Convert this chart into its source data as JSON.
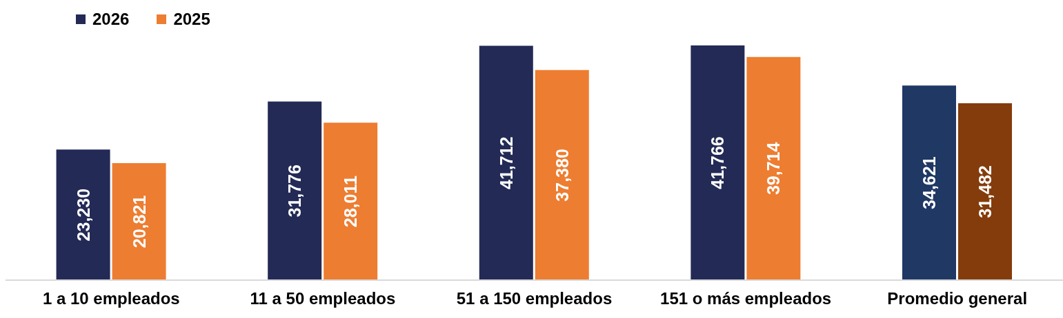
{
  "chart_data": {
    "type": "bar",
    "categories": [
      "1 a 10 empleados",
      "11 a 50 empleados",
      "51 a 150 empleados",
      "151 o más empleados",
      "Promedio general"
    ],
    "series": [
      {
        "name": "2026",
        "color": "#232a56",
        "colors": [
          "#232a56",
          "#232a56",
          "#232a56",
          "#232a56",
          "#1f3864"
        ],
        "values": [
          23230,
          31776,
          41712,
          41766,
          34621
        ],
        "value_labels": [
          "23,230",
          "31,776",
          "41,712",
          "41,766",
          "34,621"
        ]
      },
      {
        "name": "2025",
        "color": "#ed7d31",
        "colors": [
          "#ed7d31",
          "#ed7d31",
          "#ed7d31",
          "#ed7d31",
          "#843c0c"
        ],
        "values": [
          20821,
          28011,
          37380,
          39714,
          31482
        ],
        "value_labels": [
          "20,821",
          "28,011",
          "37,380",
          "39,714",
          "31,482"
        ]
      }
    ],
    "legend": "top left"
  }
}
